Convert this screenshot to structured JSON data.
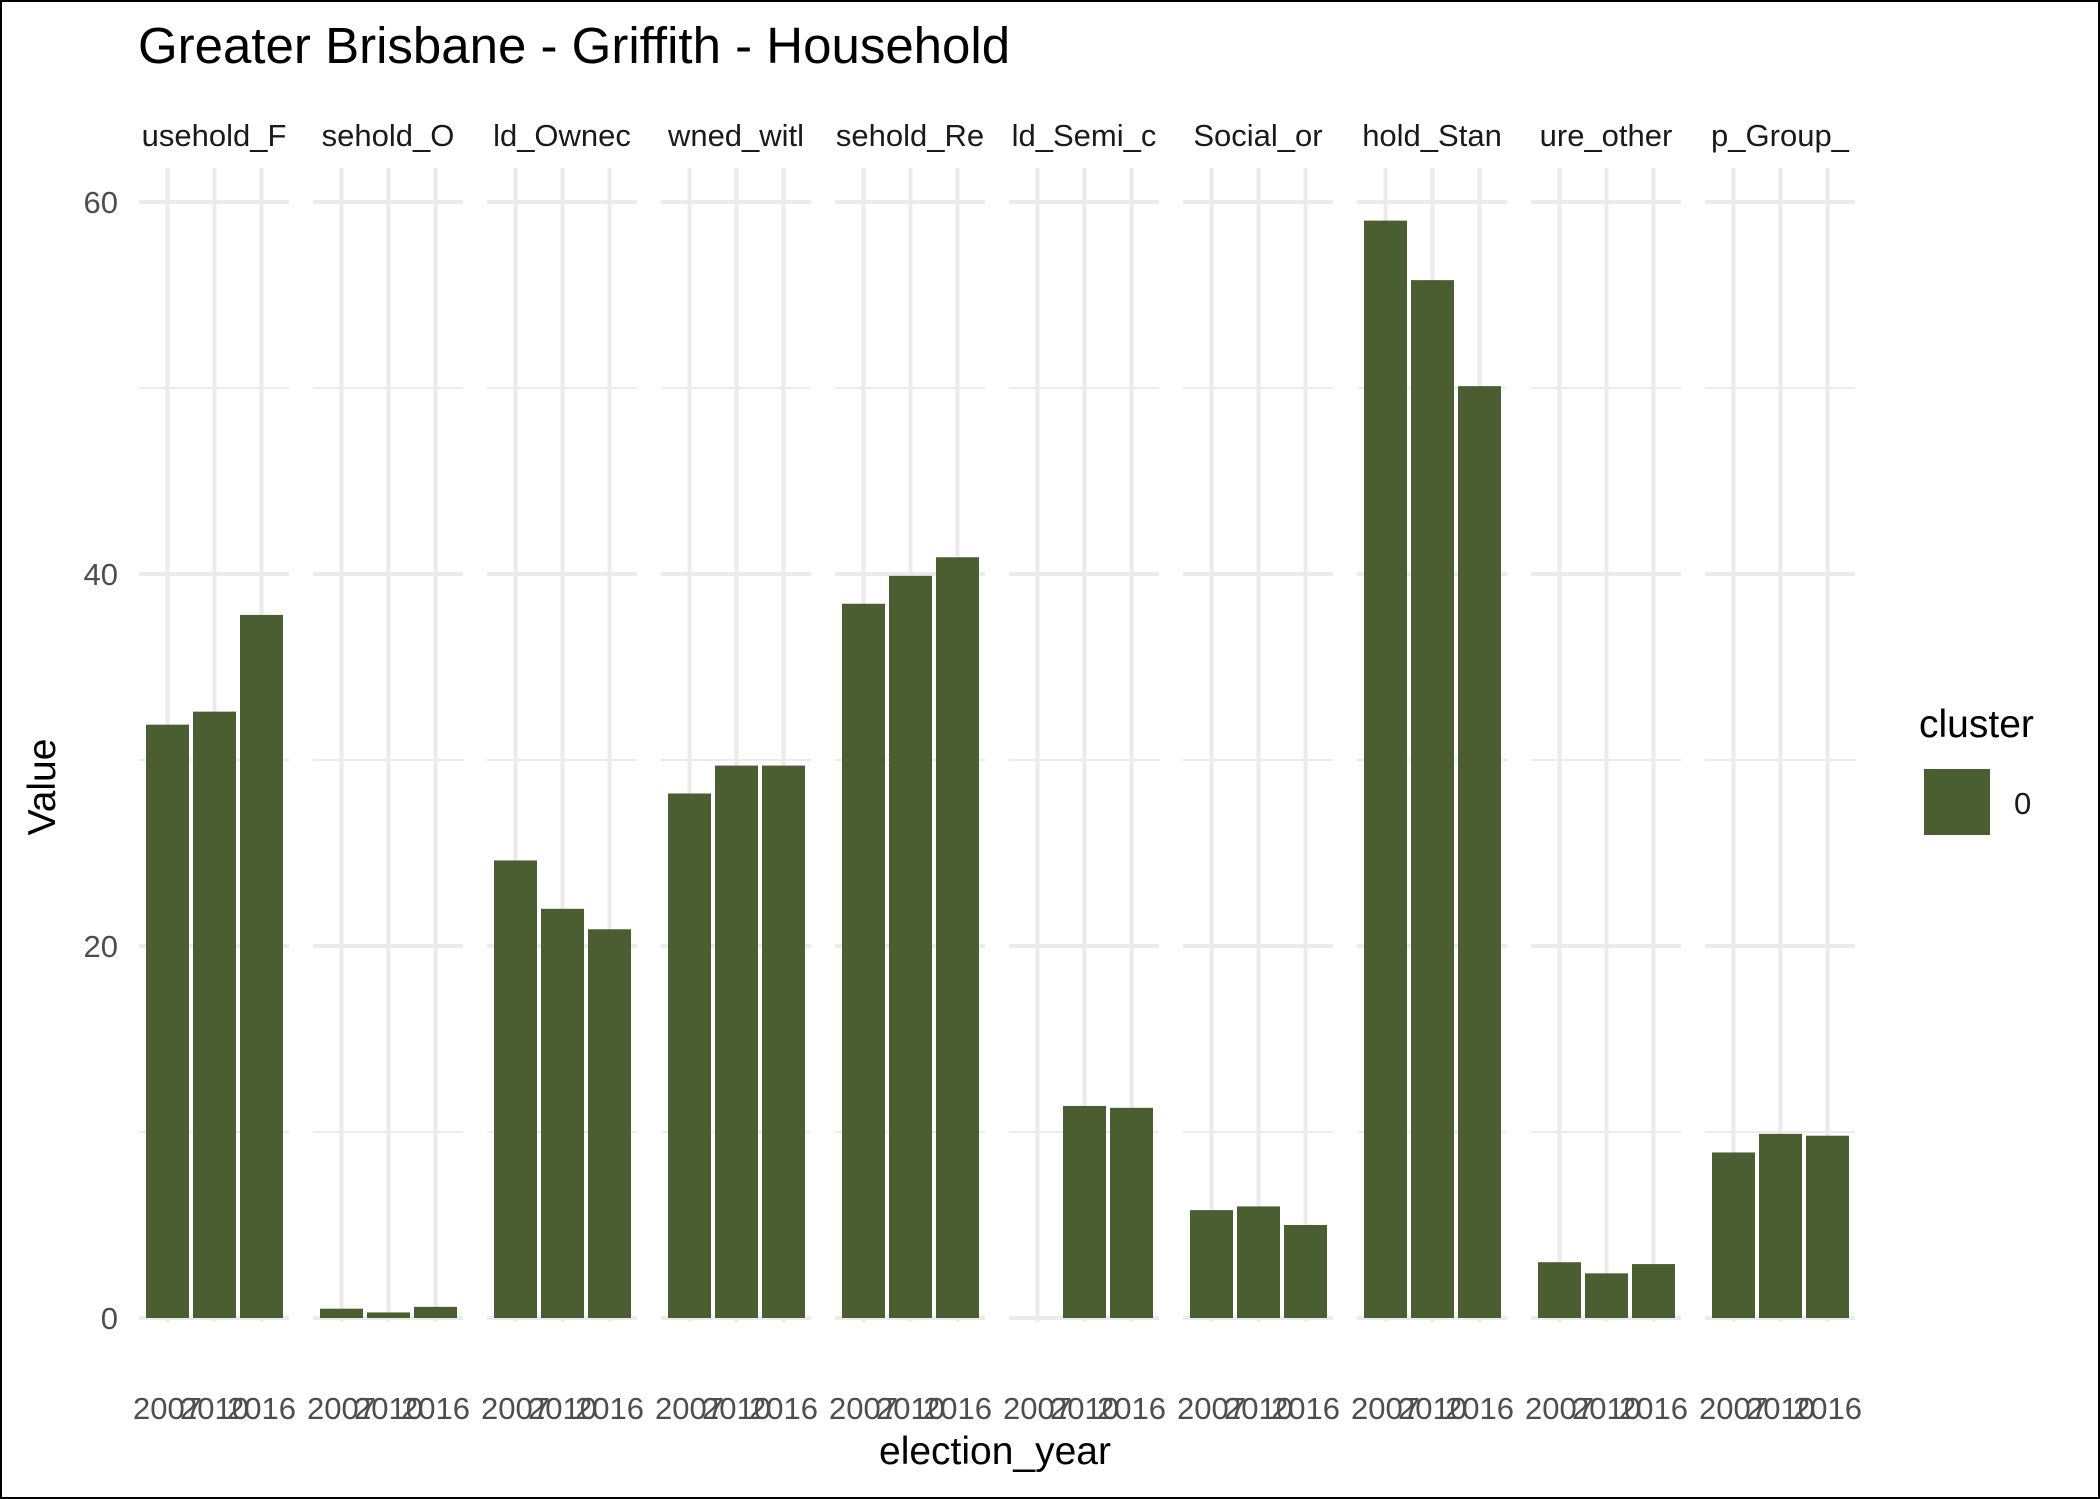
{
  "chart_data": {
    "type": "bar",
    "title": "Greater Brisbane - Griffith - Household",
    "xlabel": "election_year",
    "ylabel": "Value",
    "ylim": [
      0,
      62
    ],
    "yticks": [
      0,
      20,
      40,
      60
    ],
    "grid": true,
    "legend": {
      "title": "cluster",
      "placement": "right",
      "entries": [
        {
          "label": "0",
          "color": "#4a5e32"
        }
      ]
    },
    "bar_color": "#4a5e32",
    "x_categories": [
      "2007",
      "2010",
      "2016"
    ],
    "facets": [
      {
        "label": "usehold_F",
        "values": [
          31.9,
          32.6,
          37.8
        ]
      },
      {
        "label": "sehold_O",
        "values": [
          0.5,
          0.3,
          0.6
        ]
      },
      {
        "label": "ld_Ownec",
        "values": [
          24.6,
          22.0,
          20.9
        ]
      },
      {
        "label": "wned_witl",
        "values": [
          28.2,
          29.7,
          29.7
        ]
      },
      {
        "label": "sehold_Re",
        "values": [
          38.4,
          39.9,
          40.9
        ]
      },
      {
        "label": "ld_Semi_c",
        "values": [
          null,
          11.4,
          11.3
        ]
      },
      {
        "label": "Social_or",
        "values": [
          5.8,
          6.0,
          5.0
        ]
      },
      {
        "label": "hold_Stan",
        "values": [
          59.0,
          55.8,
          50.1
        ]
      },
      {
        "label": "ure_other",
        "values": [
          3.0,
          2.4,
          2.9
        ]
      },
      {
        "label": "p_Group_",
        "values": [
          8.9,
          9.9,
          9.8
        ]
      }
    ]
  }
}
